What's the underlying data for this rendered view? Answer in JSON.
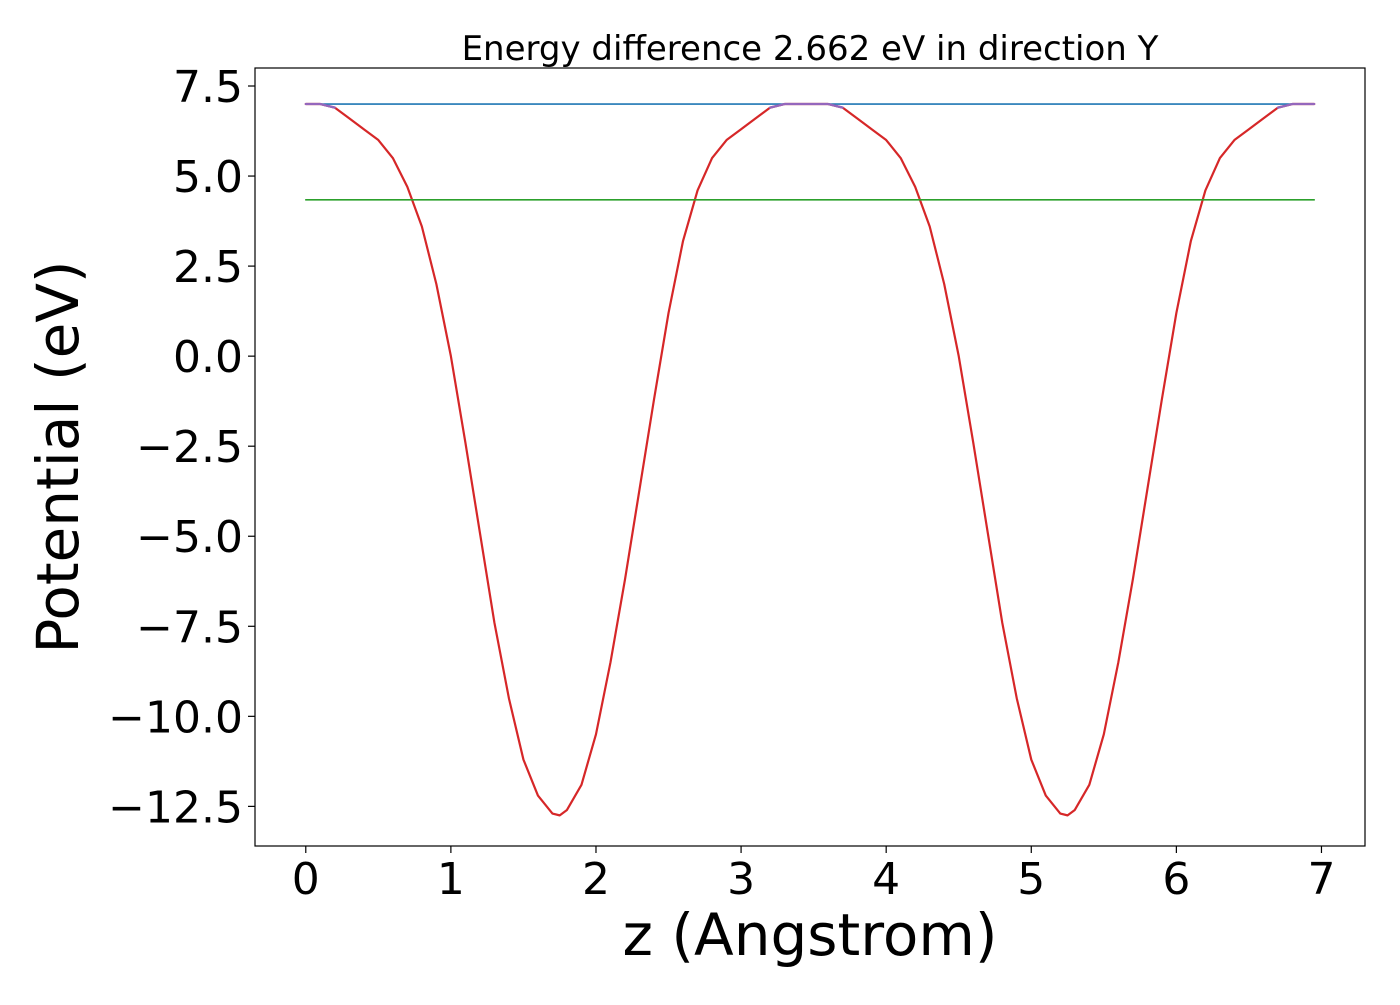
{
  "chart_data": {
    "type": "line",
    "title": "Energy difference 2.662 eV in direction Y",
    "xlabel": "z (Angstrom)",
    "ylabel": "Potential (eV)",
    "xlim": [
      -0.35,
      7.3
    ],
    "ylim": [
      -13.6,
      8.0
    ],
    "xticks": [
      0,
      1,
      2,
      3,
      4,
      5,
      6,
      7
    ],
    "xtick_labels": [
      "0",
      "1",
      "2",
      "3",
      "4",
      "5",
      "6",
      "7"
    ],
    "yticks": [
      7.5,
      5.0,
      2.5,
      0.0,
      -2.5,
      -5.0,
      -7.5,
      -10.0,
      -12.5
    ],
    "ytick_labels": [
      "7.5",
      "5.0",
      "2.5",
      "0.0",
      "−2.5",
      "−5.0",
      "−7.5",
      "−10.0",
      "−12.5"
    ],
    "grid": false,
    "legend": "none",
    "colors": {
      "potential": "#d62728",
      "level_upper": "#1f77b4",
      "level_lower": "#2ca02c",
      "upper_overlay": "#9467bd"
    },
    "series": [
      {
        "kind": "line",
        "color": "#d62728",
        "x": [
          0.0,
          0.1,
          0.2,
          0.3,
          0.4,
          0.5,
          0.6,
          0.7,
          0.8,
          0.9,
          1.0,
          1.1,
          1.2,
          1.3,
          1.4,
          1.5,
          1.6,
          1.7,
          1.75,
          1.8,
          1.9,
          2.0,
          2.1,
          2.2,
          2.3,
          2.4,
          2.5,
          2.6,
          2.7,
          2.8,
          2.9,
          3.0,
          3.1,
          3.2,
          3.3,
          3.4,
          3.5,
          3.6,
          3.7,
          3.8,
          3.9,
          4.0,
          4.1,
          4.2,
          4.3,
          4.4,
          4.5,
          4.6,
          4.7,
          4.8,
          4.9,
          5.0,
          5.1,
          5.2,
          5.25,
          5.3,
          5.4,
          5.5,
          5.6,
          5.7,
          5.8,
          5.9,
          6.0,
          6.1,
          6.2,
          6.3,
          6.4,
          6.5,
          6.6,
          6.7,
          6.8,
          6.9,
          6.95
        ],
        "y": [
          7.0,
          7.0,
          6.9,
          6.6,
          6.3,
          6.0,
          5.5,
          4.7,
          3.6,
          2.0,
          0.0,
          -2.4,
          -4.9,
          -7.4,
          -9.5,
          -11.2,
          -12.2,
          -12.7,
          -12.75,
          -12.6,
          -11.9,
          -10.5,
          -8.5,
          -6.2,
          -3.7,
          -1.2,
          1.2,
          3.2,
          4.6,
          5.5,
          6.0,
          6.3,
          6.6,
          6.9,
          7.0,
          7.0,
          7.0,
          7.0,
          6.9,
          6.6,
          6.3,
          6.0,
          5.5,
          4.7,
          3.6,
          2.0,
          0.0,
          -2.4,
          -4.9,
          -7.4,
          -9.5,
          -11.2,
          -12.2,
          -12.7,
          -12.75,
          -12.6,
          -11.9,
          -10.5,
          -8.5,
          -6.2,
          -3.7,
          -1.2,
          1.2,
          3.2,
          4.6,
          5.5,
          6.0,
          6.3,
          6.6,
          6.9,
          7.0,
          7.0,
          7.0
        ]
      },
      {
        "kind": "hline",
        "color": "#1f77b4",
        "x": [
          0.0,
          6.95
        ],
        "y": [
          7.0,
          7.0
        ]
      },
      {
        "kind": "hline",
        "color": "#2ca02c",
        "x": [
          0.0,
          6.95
        ],
        "y": [
          4.34,
          4.34
        ]
      }
    ]
  }
}
